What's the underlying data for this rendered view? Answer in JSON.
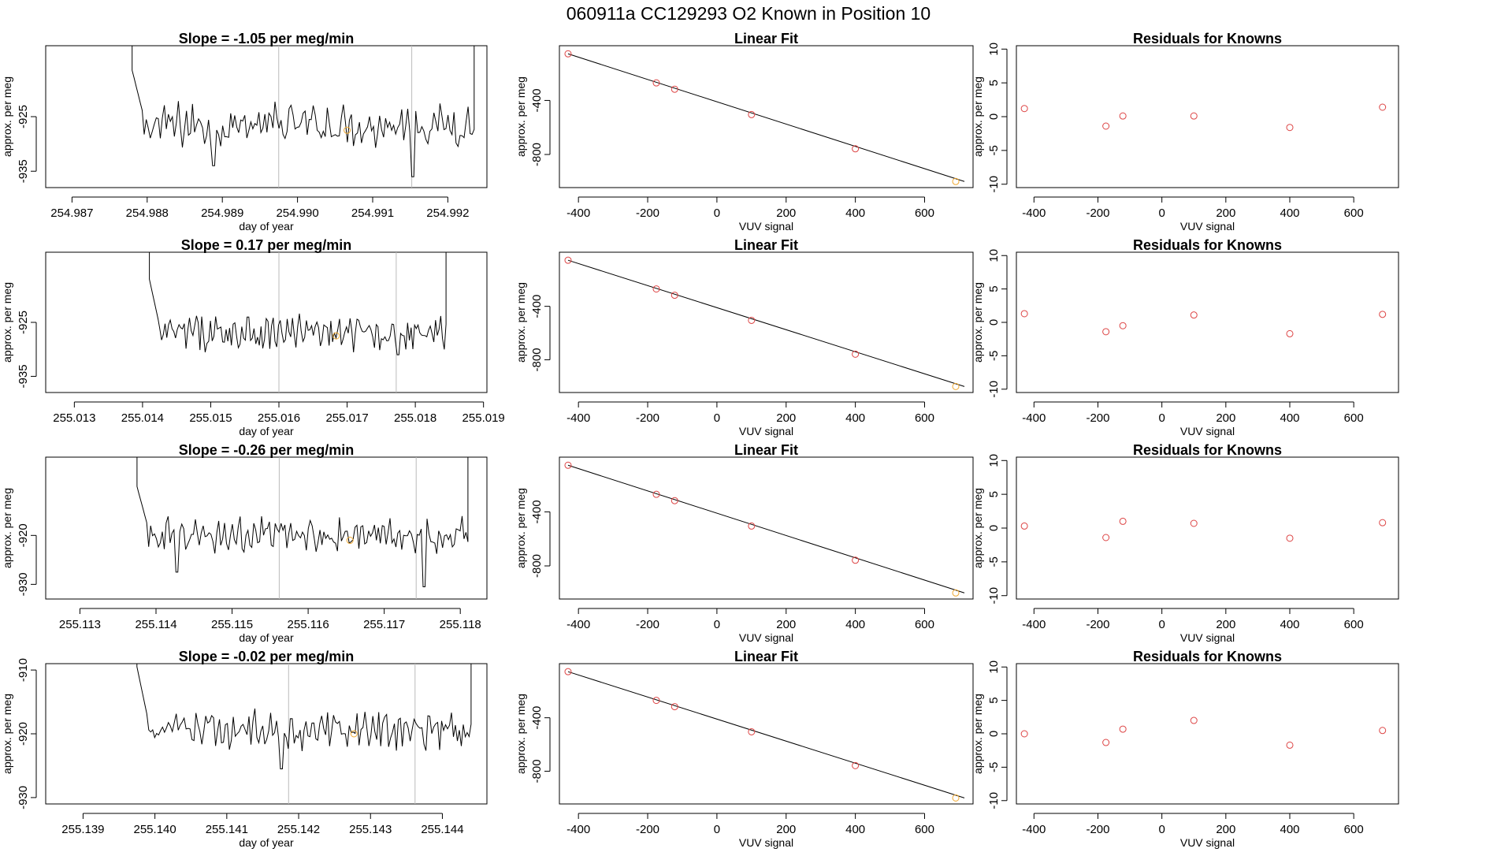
{
  "figure_title": "060911a      CC129293   O2 Known in Position  10",
  "colors": {
    "line": "#000000",
    "fit_point": "#dd4444",
    "highlight_point": "#f0a830",
    "vline": "#bbbbbb"
  },
  "chart_data": [
    {
      "type": "line",
      "panel": "time-series",
      "row": 1,
      "title": "Slope =  -1.05  per meg/min",
      "xlabel": "day of year",
      "ylabel": "approx. per meg",
      "xlim": [
        254.98665,
        254.99252
      ],
      "ylim": [
        -938,
        -912
      ],
      "xticks": [
        "254.987",
        "254.988",
        "254.989",
        "254.990",
        "254.991",
        "254.992"
      ],
      "yticks": [
        "-925",
        "-935"
      ],
      "vlines": [
        254.98975,
        254.99152
      ],
      "highlight": {
        "x": 254.99066,
        "y": -927.5
      },
      "x_start": 254.9878,
      "x_end": 254.99235,
      "baseline": -926.5,
      "noise": 3.2,
      "spikes": [
        [
          0.24,
          -934
        ],
        [
          0.82,
          -936
        ]
      ]
    },
    {
      "type": "scatter",
      "panel": "linear-fit",
      "row": 1,
      "title": "Linear Fit",
      "xlabel": "VUV signal",
      "ylabel": "approx. per meg",
      "xlim": [
        -455,
        740
      ],
      "ylim": [
        -1045,
        5
      ],
      "xticks": [
        -400,
        -200,
        0,
        200,
        400,
        600
      ],
      "yticks": [
        -400,
        -800
      ],
      "line": {
        "x": [
          -430,
          715
        ],
        "y": [
          -55,
          -1000
        ]
      },
      "points": {
        "x": [
          -430,
          -175,
          -122,
          100,
          400,
          690
        ],
        "y": [
          -55,
          -270,
          -317,
          -505,
          -758,
          -1000
        ]
      },
      "highlight_index": 5
    },
    {
      "type": "scatter",
      "panel": "residuals",
      "row": 1,
      "title": "Residuals for Knowns",
      "xlabel": "VUV signal",
      "ylabel": "approx. per meg",
      "xlim": [
        -455,
        740
      ],
      "ylim": [
        -10.5,
        10.5
      ],
      "xticks": [
        -400,
        -200,
        0,
        200,
        400,
        600
      ],
      "yticks": [
        10,
        5,
        0,
        -5,
        -10
      ],
      "points": {
        "x": [
          -430,
          -175,
          -122,
          100,
          400,
          690
        ],
        "y": [
          1.2,
          -1.4,
          0.1,
          0.1,
          -1.6,
          1.4
        ]
      }
    },
    {
      "type": "line",
      "panel": "time-series",
      "row": 2,
      "title": "Slope =  0.17  per meg/min",
      "xlabel": "day of year",
      "ylabel": "approx. per meg",
      "xlim": [
        255.01258,
        255.01905
      ],
      "ylim": [
        -938,
        -912
      ],
      "xticks": [
        "255.013",
        "255.014",
        "255.015",
        "255.016",
        "255.017",
        "255.018",
        "255.019"
      ],
      "yticks": [
        "-925",
        "-935"
      ],
      "vlines": [
        255.016,
        255.01772
      ],
      "highlight": {
        "x": 255.01684,
        "y": -927.5
      },
      "x_start": 255.0141,
      "x_end": 255.01845,
      "baseline": -927,
      "noise": 2.6,
      "spikes": [
        [
          0.33,
          -924
        ],
        [
          0.84,
          -931
        ]
      ]
    },
    {
      "type": "scatter",
      "panel": "linear-fit",
      "row": 2,
      "title": "Linear Fit",
      "xlabel": "VUV signal",
      "ylabel": "approx. per meg",
      "xlim": [
        -455,
        740
      ],
      "ylim": [
        -1045,
        5
      ],
      "xticks": [
        -400,
        -200,
        0,
        200,
        400,
        600
      ],
      "yticks": [
        -400,
        -800
      ],
      "line": {
        "x": [
          -430,
          715
        ],
        "y": [
          -55,
          -1000
        ]
      },
      "points": {
        "x": [
          -430,
          -175,
          -122,
          100,
          400,
          690
        ],
        "y": [
          -55,
          -270,
          -317,
          -505,
          -758,
          -1000
        ]
      },
      "highlight_index": 5
    },
    {
      "type": "scatter",
      "panel": "residuals",
      "row": 2,
      "title": "Residuals for Knowns",
      "xlabel": "VUV signal",
      "ylabel": "approx. per meg",
      "xlim": [
        -455,
        740
      ],
      "ylim": [
        -10.5,
        10.5
      ],
      "xticks": [
        -400,
        -200,
        0,
        200,
        400,
        600
      ],
      "yticks": [
        10,
        5,
        0,
        -5,
        -10
      ],
      "points": {
        "x": [
          -430,
          -175,
          -122,
          100,
          400,
          690
        ],
        "y": [
          1.3,
          -1.4,
          -0.5,
          1.1,
          -1.7,
          1.2
        ]
      }
    },
    {
      "type": "line",
      "panel": "time-series",
      "row": 3,
      "title": "Slope =  -0.26  per meg/min",
      "xlabel": "day of year",
      "ylabel": "approx. per meg",
      "xlim": [
        255.11255,
        255.11835
      ],
      "ylim": [
        -933,
        -904
      ],
      "xticks": [
        "255.113",
        "255.114",
        "255.115",
        "255.116",
        "255.117",
        "255.118"
      ],
      "yticks": [
        "-920",
        "-930"
      ],
      "vlines": [
        255.11562,
        255.11742
      ],
      "highlight": {
        "x": 255.11655,
        "y": -921
      },
      "x_start": 255.11375,
      "x_end": 255.1181,
      "baseline": -920,
      "noise": 2.8,
      "spikes": [
        [
          0.12,
          -927.5
        ],
        [
          0.87,
          -930.5
        ]
      ]
    },
    {
      "type": "scatter",
      "panel": "linear-fit",
      "row": 3,
      "title": "Linear Fit",
      "xlabel": "VUV signal",
      "ylabel": "approx. per meg",
      "xlim": [
        -455,
        740
      ],
      "ylim": [
        -1045,
        5
      ],
      "xticks": [
        -400,
        -200,
        0,
        200,
        400,
        600
      ],
      "yticks": [
        -400,
        -800
      ],
      "line": {
        "x": [
          -430,
          715
        ],
        "y": [
          -55,
          -1000
        ]
      },
      "points": {
        "x": [
          -430,
          -175,
          -122,
          100,
          400,
          690
        ],
        "y": [
          -55,
          -270,
          -317,
          -505,
          -758,
          -1000
        ]
      },
      "highlight_index": 5
    },
    {
      "type": "scatter",
      "panel": "residuals",
      "row": 3,
      "title": "Residuals for Knowns",
      "xlabel": "VUV signal",
      "ylabel": "approx. per meg",
      "xlim": [
        -455,
        740
      ],
      "ylim": [
        -10.5,
        10.5
      ],
      "xticks": [
        -400,
        -200,
        0,
        200,
        400,
        600
      ],
      "yticks": [
        10,
        5,
        0,
        -5,
        -10
      ],
      "points": {
        "x": [
          -430,
          -175,
          -122,
          100,
          400,
          690
        ],
        "y": [
          0.3,
          -1.4,
          1.0,
          0.7,
          -1.5,
          0.8
        ]
      }
    },
    {
      "type": "line",
      "panel": "time-series",
      "row": 4,
      "title": "Slope =  -0.02  per meg/min",
      "xlabel": "day of year",
      "ylabel": "approx. per meg",
      "xlim": [
        255.13848,
        255.14462
      ],
      "ylim": [
        -931,
        -909
      ],
      "xticks": [
        "255.139",
        "255.140",
        "255.141",
        "255.142",
        "255.143",
        "255.144"
      ],
      "yticks": [
        "-910",
        "-920",
        "-930"
      ],
      "vlines": [
        255.14186,
        255.14362
      ],
      "highlight": {
        "x": 255.14277,
        "y": -920
      },
      "x_start": 255.13975,
      "x_end": 255.1444,
      "baseline": -919.5,
      "noise": 2.4,
      "spikes": [
        [
          0.43,
          -925.5
        ]
      ]
    },
    {
      "type": "scatter",
      "panel": "linear-fit",
      "row": 4,
      "title": "Linear Fit",
      "xlabel": "VUV signal",
      "ylabel": "approx. per meg",
      "xlim": [
        -455,
        740
      ],
      "ylim": [
        -1045,
        5
      ],
      "xticks": [
        -400,
        -200,
        0,
        200,
        400,
        600
      ],
      "yticks": [
        -400,
        -800
      ],
      "line": {
        "x": [
          -430,
          715
        ],
        "y": [
          -55,
          -1000
        ]
      },
      "points": {
        "x": [
          -430,
          -175,
          -122,
          100,
          400,
          690
        ],
        "y": [
          -55,
          -270,
          -317,
          -505,
          -758,
          -1000
        ]
      },
      "highlight_index": 5
    },
    {
      "type": "scatter",
      "panel": "residuals",
      "row": 4,
      "title": "Residuals for Knowns",
      "xlabel": "VUV signal",
      "ylabel": "approx. per meg",
      "xlim": [
        -455,
        740
      ],
      "ylim": [
        -10.5,
        10.5
      ],
      "xticks": [
        -400,
        -200,
        0,
        200,
        400,
        600
      ],
      "yticks": [
        10,
        5,
        0,
        -5,
        -10
      ],
      "points": {
        "x": [
          -430,
          -175,
          -122,
          100,
          400,
          690
        ],
        "y": [
          0.0,
          -1.3,
          0.7,
          2.0,
          -1.7,
          0.5
        ]
      }
    }
  ]
}
